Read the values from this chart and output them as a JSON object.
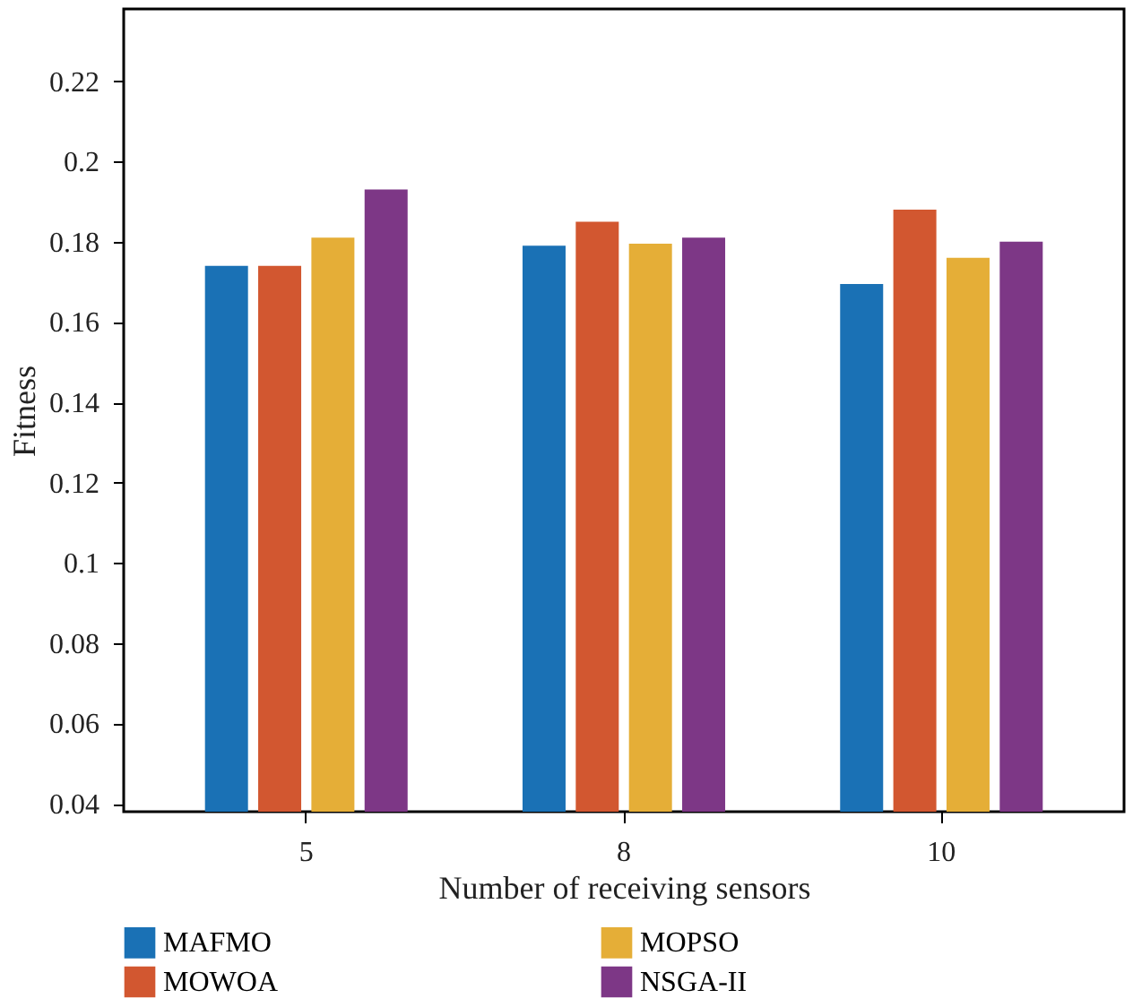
{
  "chart_data": {
    "type": "bar",
    "xlabel": "Number of receiving sensors",
    "ylabel": "Fitness",
    "categories": [
      "5",
      "8",
      "10"
    ],
    "series": [
      {
        "name": "MAFMO",
        "color": "#1a71b5",
        "values": [
          0.174,
          0.179,
          0.1695
        ]
      },
      {
        "name": "MOWOA",
        "color": "#d25730",
        "values": [
          0.174,
          0.185,
          0.188
        ]
      },
      {
        "name": "MOPSO",
        "color": "#e5ae37",
        "values": [
          0.181,
          0.1795,
          0.176
        ]
      },
      {
        "name": "NSGA-II",
        "color": "#7d3786",
        "values": [
          0.193,
          0.181,
          0.18
        ]
      }
    ],
    "ylim": [
      0.038,
      0.238
    ],
    "yticks": [
      0.04,
      0.06,
      0.08,
      0.1,
      0.12,
      0.14,
      0.16,
      0.18,
      0.2,
      0.22
    ],
    "grid": false,
    "legend": "bottom"
  }
}
